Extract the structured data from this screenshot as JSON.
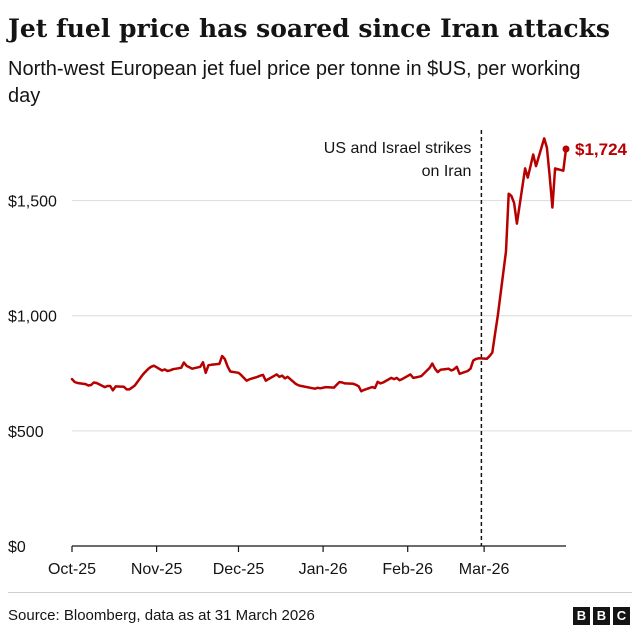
{
  "title": "Jet fuel price has soared since Iran attacks",
  "subtitle": "North-west European jet fuel price per tonne in $US, per working day",
  "source": "Source: Bloomberg, data as at 31 March 2026",
  "logo": [
    "B",
    "B",
    "C"
  ],
  "colors": {
    "line": "#b80000",
    "grid": "#dcdcdc",
    "axis": "#141414",
    "text": "#141414"
  },
  "chart_data": {
    "type": "line",
    "title": "Jet fuel price has soared since Iran attacks",
    "subtitle": "North-west European jet fuel price per tonne in $US, per working day",
    "xlabel": "",
    "ylabel": "",
    "ylim": [
      0,
      1850
    ],
    "xlim": [
      "2025-10-01",
      "2026-03-31"
    ],
    "grid": "horizontal",
    "y_ticks": [
      0,
      500,
      1000,
      1500
    ],
    "y_tick_labels": [
      "$0",
      "$500",
      "$1,000",
      "$1,500"
    ],
    "x_ticks": [
      "2025-10-01",
      "2025-11-01",
      "2025-12-01",
      "2026-01-01",
      "2026-02-01",
      "2026-03-01"
    ],
    "x_tick_labels": [
      "Oct-25",
      "Nov-25",
      "Dec-25",
      "Jan-26",
      "Feb-26",
      "Mar-26"
    ],
    "annotation": {
      "date": "2026-02-28",
      "lines": [
        "US and Israel strikes",
        "on Iran"
      ]
    },
    "end_label": "$1,724",
    "series": [
      {
        "values": [
          [
            "2025-10-01",
            725
          ],
          [
            "2025-10-02",
            712
          ],
          [
            "2025-10-03",
            708
          ],
          [
            "2025-10-06",
            703
          ],
          [
            "2025-10-07",
            697
          ],
          [
            "2025-10-08",
            699
          ],
          [
            "2025-10-09",
            710
          ],
          [
            "2025-10-10",
            708
          ],
          [
            "2025-10-13",
            690
          ],
          [
            "2025-10-14",
            695
          ],
          [
            "2025-10-15",
            695
          ],
          [
            "2025-10-16",
            676
          ],
          [
            "2025-10-17",
            693
          ],
          [
            "2025-10-20",
            692
          ],
          [
            "2025-10-21",
            680
          ],
          [
            "2025-10-22",
            680
          ],
          [
            "2025-10-23",
            688
          ],
          [
            "2025-10-24",
            697
          ],
          [
            "2025-10-27",
            745
          ],
          [
            "2025-10-28",
            758
          ],
          [
            "2025-10-29",
            770
          ],
          [
            "2025-10-30",
            778
          ],
          [
            "2025-10-31",
            783
          ],
          [
            "2025-11-03",
            762
          ],
          [
            "2025-11-04",
            767
          ],
          [
            "2025-11-05",
            760
          ],
          [
            "2025-11-06",
            763
          ],
          [
            "2025-11-07",
            768
          ],
          [
            "2025-11-10",
            774
          ],
          [
            "2025-11-11",
            797
          ],
          [
            "2025-11-12",
            782
          ],
          [
            "2025-11-13",
            776
          ],
          [
            "2025-11-14",
            770
          ],
          [
            "2025-11-17",
            778
          ],
          [
            "2025-11-18",
            798
          ],
          [
            "2025-11-19",
            752
          ],
          [
            "2025-11-20",
            785
          ],
          [
            "2025-11-21",
            787
          ],
          [
            "2025-11-24",
            791
          ],
          [
            "2025-11-25",
            825
          ],
          [
            "2025-11-26",
            812
          ],
          [
            "2025-11-27",
            780
          ],
          [
            "2025-11-28",
            758
          ],
          [
            "2025-12-01",
            752
          ],
          [
            "2025-12-02",
            742
          ],
          [
            "2025-12-03",
            730
          ],
          [
            "2025-12-04",
            718
          ],
          [
            "2025-12-05",
            724
          ],
          [
            "2025-12-08",
            735
          ],
          [
            "2025-12-09",
            740
          ],
          [
            "2025-12-10",
            743
          ],
          [
            "2025-12-11",
            718
          ],
          [
            "2025-12-12",
            725
          ],
          [
            "2025-12-15",
            745
          ],
          [
            "2025-12-16",
            735
          ],
          [
            "2025-12-17",
            740
          ],
          [
            "2025-12-18",
            728
          ],
          [
            "2025-12-19",
            735
          ],
          [
            "2025-12-22",
            704
          ],
          [
            "2025-12-23",
            698
          ],
          [
            "2025-12-24",
            695
          ],
          [
            "2025-12-29",
            683
          ],
          [
            "2025-12-30",
            687
          ],
          [
            "2025-12-31",
            685
          ],
          [
            "2026-01-02",
            690
          ],
          [
            "2026-01-05",
            688
          ],
          [
            "2026-01-06",
            700
          ],
          [
            "2026-01-07",
            712
          ],
          [
            "2026-01-08",
            710
          ],
          [
            "2026-01-09",
            706
          ],
          [
            "2026-01-12",
            705
          ],
          [
            "2026-01-13",
            700
          ],
          [
            "2026-01-14",
            694
          ],
          [
            "2026-01-15",
            672
          ],
          [
            "2026-01-16",
            678
          ],
          [
            "2026-01-19",
            690
          ],
          [
            "2026-01-20",
            686
          ],
          [
            "2026-01-21",
            713
          ],
          [
            "2026-01-22",
            706
          ],
          [
            "2026-01-23",
            710
          ],
          [
            "2026-01-26",
            730
          ],
          [
            "2026-01-27",
            725
          ],
          [
            "2026-01-28",
            730
          ],
          [
            "2026-01-29",
            720
          ],
          [
            "2026-01-30",
            725
          ],
          [
            "2026-02-02",
            745
          ],
          [
            "2026-02-03",
            730
          ],
          [
            "2026-02-04",
            732
          ],
          [
            "2026-02-05",
            735
          ],
          [
            "2026-02-06",
            738
          ],
          [
            "2026-02-09",
            773
          ],
          [
            "2026-02-10",
            792
          ],
          [
            "2026-02-11",
            770
          ],
          [
            "2026-02-12",
            755
          ],
          [
            "2026-02-13",
            765
          ],
          [
            "2026-02-16",
            770
          ],
          [
            "2026-02-17",
            762
          ],
          [
            "2026-02-18",
            768
          ],
          [
            "2026-02-19",
            778
          ],
          [
            "2026-02-20",
            748
          ],
          [
            "2026-02-23",
            760
          ],
          [
            "2026-02-24",
            770
          ],
          [
            "2026-02-25",
            805
          ],
          [
            "2026-02-26",
            812
          ],
          [
            "2026-02-27",
            815
          ],
          [
            "2026-03-02",
            813
          ],
          [
            "2026-03-03",
            825
          ],
          [
            "2026-03-04",
            840
          ],
          [
            "2026-03-05",
            920
          ],
          [
            "2026-03-06",
            1000
          ],
          [
            "2026-03-09",
            1280
          ],
          [
            "2026-03-10",
            1530
          ],
          [
            "2026-03-11",
            1520
          ],
          [
            "2026-03-12",
            1490
          ],
          [
            "2026-03-13",
            1400
          ],
          [
            "2026-03-16",
            1640
          ],
          [
            "2026-03-17",
            1600
          ],
          [
            "2026-03-18",
            1650
          ],
          [
            "2026-03-19",
            1700
          ],
          [
            "2026-03-20",
            1650
          ],
          [
            "2026-03-23",
            1770
          ],
          [
            "2026-03-24",
            1730
          ],
          [
            "2026-03-25",
            1610
          ],
          [
            "2026-03-26",
            1470
          ],
          [
            "2026-03-27",
            1640
          ],
          [
            "2026-03-30",
            1630
          ],
          [
            "2026-03-31",
            1724
          ]
        ]
      }
    ]
  }
}
